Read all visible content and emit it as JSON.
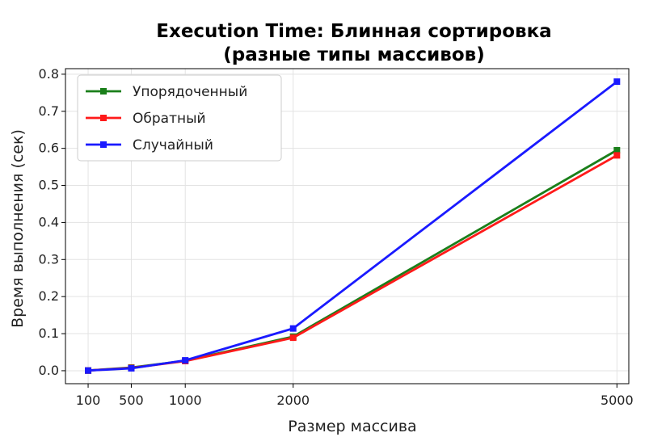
{
  "chart_data": {
    "type": "line",
    "title_line1": "Execution Time: Блинная сортировка",
    "title_line2": "(разные типы массивов)",
    "xlabel": "Размер массива",
    "ylabel": "Время выполнения (сек)",
    "x": [
      100,
      500,
      1000,
      2000,
      5000
    ],
    "x_ticks": [
      "100",
      "500",
      "1000",
      "2000",
      "5000"
    ],
    "y_ticks": [
      "0.0",
      "0.1",
      "0.2",
      "0.3",
      "0.4",
      "0.5",
      "0.6",
      "0.7",
      "0.8"
    ],
    "xlim": [
      -110,
      5110
    ],
    "ylim": [
      -0.035,
      0.815
    ],
    "grid": true,
    "legend_position": "top-left",
    "series": [
      {
        "name": "Упорядоченный",
        "color": "#1a7f1a",
        "marker": "square",
        "values": [
          0.0005,
          0.0085,
          0.027,
          0.092,
          0.595
        ]
      },
      {
        "name": "Обратный",
        "color": "#ff1a1a",
        "marker": "square",
        "values": [
          0.0005,
          0.0075,
          0.026,
          0.089,
          0.581
        ]
      },
      {
        "name": "Случайный",
        "color": "#1a1aff",
        "marker": "square",
        "values": [
          0.0005,
          0.0065,
          0.028,
          0.114,
          0.78
        ]
      }
    ]
  }
}
